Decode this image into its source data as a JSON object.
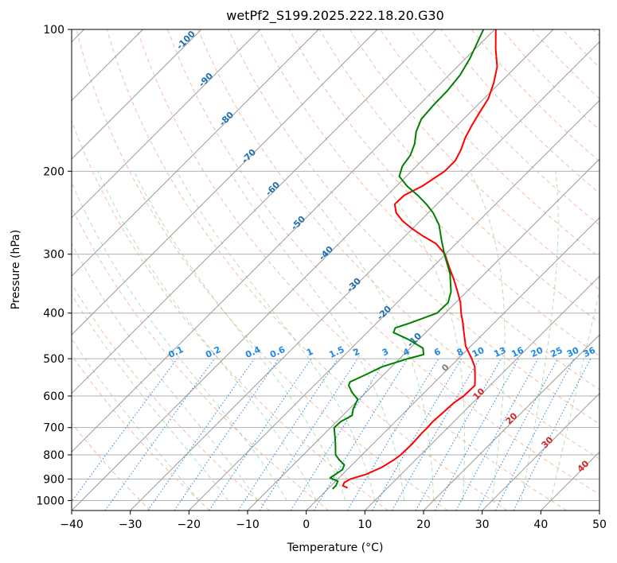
{
  "chart_data": {
    "type": "skew-t",
    "title": "wetPf2_S199.2025.222.18.20.G30",
    "xlabel": "Temperature (°C)",
    "ylabel": "Pressure (hPa)",
    "xlim": [
      -40,
      50
    ],
    "ylim": [
      1050,
      100
    ],
    "x_ticks": [
      -40,
      -30,
      -20,
      -10,
      0,
      10,
      20,
      30,
      40,
      50
    ],
    "y_ticks": [
      100,
      200,
      300,
      400,
      500,
      600,
      700,
      800,
      900,
      1000
    ],
    "series": [
      {
        "name": "temperature",
        "color": "#ff0000",
        "points": [
          {
            "p": 940,
            "t": 3.2
          },
          {
            "p": 930,
            "t": 2.0
          },
          {
            "p": 915,
            "t": 1.7
          },
          {
            "p": 900,
            "t": 2.2
          },
          {
            "p": 880,
            "t": 4.0
          },
          {
            "p": 850,
            "t": 5.5
          },
          {
            "p": 820,
            "t": 6.3
          },
          {
            "p": 800,
            "t": 6.6
          },
          {
            "p": 760,
            "t": 6.7
          },
          {
            "p": 720,
            "t": 6.5
          },
          {
            "p": 700,
            "t": 6.5
          },
          {
            "p": 680,
            "t": 6.4
          },
          {
            "p": 650,
            "t": 6.6
          },
          {
            "p": 620,
            "t": 6.8
          },
          {
            "p": 600,
            "t": 7.3
          },
          {
            "p": 570,
            "t": 7.4
          },
          {
            "p": 550,
            "t": 6.2
          },
          {
            "p": 520,
            "t": 4.2
          },
          {
            "p": 500,
            "t": 2.3
          },
          {
            "p": 470,
            "t": -0.9
          },
          {
            "p": 440,
            "t": -3.5
          },
          {
            "p": 420,
            "t": -5.3
          },
          {
            "p": 400,
            "t": -7.3
          },
          {
            "p": 380,
            "t": -9.2
          },
          {
            "p": 360,
            "t": -11.6
          },
          {
            "p": 340,
            "t": -14.2
          },
          {
            "p": 320,
            "t": -17.1
          },
          {
            "p": 300,
            "t": -20.1
          },
          {
            "p": 285,
            "t": -23.4
          },
          {
            "p": 275,
            "t": -26.8
          },
          {
            "p": 265,
            "t": -30.0
          },
          {
            "p": 255,
            "t": -33.0
          },
          {
            "p": 245,
            "t": -35.5
          },
          {
            "p": 235,
            "t": -37.2
          },
          {
            "p": 225,
            "t": -37.1
          },
          {
            "p": 215,
            "t": -35.6
          },
          {
            "p": 200,
            "t": -34.3
          },
          {
            "p": 190,
            "t": -34.3
          },
          {
            "p": 180,
            "t": -35.2
          },
          {
            "p": 170,
            "t": -36.5
          },
          {
            "p": 160,
            "t": -37.5
          },
          {
            "p": 150,
            "t": -38.4
          },
          {
            "p": 140,
            "t": -39.3
          },
          {
            "p": 130,
            "t": -41.0
          },
          {
            "p": 120,
            "t": -43.2
          },
          {
            "p": 110,
            "t": -46.5
          },
          {
            "p": 100,
            "t": -49.8
          }
        ]
      },
      {
        "name": "dewpoint",
        "color": "#008000",
        "points": [
          {
            "p": 945,
            "t": 0.8
          },
          {
            "p": 930,
            "t": 0.8
          },
          {
            "p": 910,
            "t": 0.4
          },
          {
            "p": 895,
            "t": -1.5
          },
          {
            "p": 880,
            "t": -1.2
          },
          {
            "p": 860,
            "t": -0.8
          },
          {
            "p": 840,
            "t": -1.3
          },
          {
            "p": 820,
            "t": -3.0
          },
          {
            "p": 800,
            "t": -4.5
          },
          {
            "p": 760,
            "t": -6.3
          },
          {
            "p": 730,
            "t": -7.8
          },
          {
            "p": 700,
            "t": -9.4
          },
          {
            "p": 680,
            "t": -9.3
          },
          {
            "p": 660,
            "t": -8.4
          },
          {
            "p": 640,
            "t": -9.3
          },
          {
            "p": 610,
            "t": -10.2
          },
          {
            "p": 590,
            "t": -12.3
          },
          {
            "p": 570,
            "t": -14.1
          },
          {
            "p": 560,
            "t": -14.5
          },
          {
            "p": 540,
            "t": -13.0
          },
          {
            "p": 520,
            "t": -11.6
          },
          {
            "p": 500,
            "t": -8.6
          },
          {
            "p": 490,
            "t": -6.6
          },
          {
            "p": 475,
            "t": -7.8
          },
          {
            "p": 455,
            "t": -11.8
          },
          {
            "p": 440,
            "t": -15.5
          },
          {
            "p": 430,
            "t": -16.0
          },
          {
            "p": 420,
            "t": -14.3
          },
          {
            "p": 400,
            "t": -11.4
          },
          {
            "p": 380,
            "t": -11.3
          },
          {
            "p": 360,
            "t": -12.7
          },
          {
            "p": 330,
            "t": -15.9
          },
          {
            "p": 300,
            "t": -20.2
          },
          {
            "p": 280,
            "t": -23.1
          },
          {
            "p": 260,
            "t": -26.1
          },
          {
            "p": 245,
            "t": -29.2
          },
          {
            "p": 235,
            "t": -31.8
          },
          {
            "p": 225,
            "t": -34.8
          },
          {
            "p": 215,
            "t": -38.2
          },
          {
            "p": 205,
            "t": -41.2
          },
          {
            "p": 195,
            "t": -42.4
          },
          {
            "p": 185,
            "t": -42.9
          },
          {
            "p": 175,
            "t": -44.1
          },
          {
            "p": 165,
            "t": -45.9
          },
          {
            "p": 155,
            "t": -47.2
          },
          {
            "p": 145,
            "t": -47.5
          },
          {
            "p": 135,
            "t": -47.6
          },
          {
            "p": 125,
            "t": -48.1
          },
          {
            "p": 115,
            "t": -49.3
          },
          {
            "p": 100,
            "t": -51.9
          }
        ]
      }
    ],
    "isotherm_labels": [
      "-100",
      "-90",
      "-80",
      "-70",
      "-60",
      "-50",
      "-40",
      "-30",
      "-20",
      "-10"
    ],
    "mixing_ratio_labels": [
      "0.1",
      "0.2",
      "0.4",
      "0.6",
      "1",
      "1.5",
      "2",
      "3",
      "4",
      "6",
      "8",
      "10",
      "13",
      "16",
      "20",
      "25",
      "30",
      "36"
    ],
    "dry_adiabat_labels": [
      "0",
      "10",
      "20",
      "30",
      "40"
    ],
    "colors": {
      "temperature": "#ff0000",
      "dewpoint": "#008000",
      "isotherm_label": "#1f6fb0",
      "mixing_ratio": "#1e88e5",
      "dry_adiabat_label": "#d62728",
      "zero_label": "#808080"
    }
  }
}
